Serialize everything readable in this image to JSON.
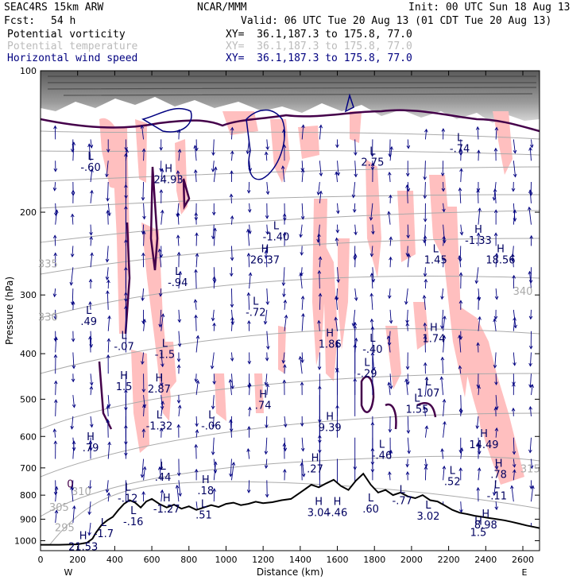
{
  "header": {
    "model": "SEAC4RS 15km ARW",
    "org": "NCAR/MMM",
    "init": "Init: 00 UTC Sun 18 Aug 13",
    "fcst_label": "Fcst:",
    "fcst_value": "54 h",
    "valid": "Valid: 06 UTC Tue 20 Aug 13 (01 CDT Tue 20 Aug 13)",
    "fields": [
      {
        "name": "Potential vorticity",
        "xy": "XY=  36.1,187.3 to 175.8, 77.0"
      },
      {
        "name": "Potential temperature",
        "xy": "XY=  36.1,187.3 to 175.8, 77.0"
      },
      {
        "name": "Horizontal wind speed",
        "xy": "XY=  36.1,187.3 to 175.8, 77.0"
      }
    ]
  },
  "colors": {
    "pv_contour": "#44004a",
    "theta_contour": "#aaaaaa",
    "wind_vector": "#000080",
    "wind_shade": "#ffbfbf",
    "terrain_line": "#000000",
    "strat_shade": "#6e6e6e"
  },
  "chart_data": {
    "type": "cross-section",
    "xlabel": "Distance (km)",
    "ylabel": "Pressure (hPa)",
    "x_ticks": [
      0,
      200,
      400,
      600,
      800,
      1000,
      1200,
      1400,
      1600,
      1800,
      2000,
      2200,
      2400,
      2600
    ],
    "y_ticks": [
      100,
      200,
      300,
      400,
      500,
      600,
      700,
      800,
      900,
      1000
    ],
    "xlim": [
      0,
      2690
    ],
    "ylim": [
      1050,
      100
    ],
    "y_scale": "log",
    "left_end_label": "W",
    "right_end_label": "E",
    "terrain": {
      "x": [
        0,
        100,
        200,
        250,
        280,
        300,
        330,
        360,
        390,
        420,
        450,
        480,
        510,
        540,
        570,
        600,
        640,
        680,
        720,
        760,
        800,
        840,
        880,
        920,
        960,
        1000,
        1040,
        1080,
        1120,
        1160,
        1200,
        1250,
        1300,
        1350,
        1400,
        1430,
        1460,
        1500,
        1540,
        1580,
        1620,
        1660,
        1700,
        1740,
        1780,
        1820,
        1860,
        1900,
        1940,
        1980,
        2020,
        2060,
        2100,
        2140,
        2180,
        2220,
        2260,
        2300,
        2340,
        2380,
        2420,
        2460,
        2500,
        2540,
        2580,
        2620,
        2660,
        2690
      ],
      "p": [
        1020,
        1020,
        1018,
        1010,
        990,
        960,
        925,
        905,
        890,
        860,
        835,
        820,
        830,
        850,
        825,
        815,
        835,
        850,
        838,
        855,
        845,
        860,
        850,
        840,
        848,
        835,
        830,
        840,
        835,
        826,
        832,
        828,
        820,
        815,
        790,
        775,
        760,
        770,
        755,
        742,
        765,
        780,
        745,
        720,
        760,
        790,
        780,
        800,
        790,
        805,
        812,
        800,
        820,
        825,
        842,
        860,
        872,
        878,
        885,
        890,
        895,
        900,
        905,
        912,
        920,
        928,
        935,
        940
      ]
    },
    "theta_contours": [
      {
        "value": 335,
        "label_x": 40,
        "label_p": 262
      },
      {
        "value": 330,
        "label_x": 40,
        "label_p": 340
      },
      {
        "value": 310,
        "label_x": 220,
        "label_p": 800
      },
      {
        "value": 305,
        "label_x": 100,
        "label_p": 865
      },
      {
        "value": 295,
        "label_x": 130,
        "label_p": 955
      },
      {
        "value": 315,
        "label_x": 2640,
        "label_p": 715
      },
      {
        "value": 340,
        "label_x": 2600,
        "label_p": 300
      }
    ],
    "pv_labels": [
      {
        "text": "0",
        "x": 160,
        "p": 770
      }
    ],
    "extrema": [
      {
        "kind": "L",
        "value": "-.60",
        "x": 270,
        "p": 162
      },
      {
        "kind": "H",
        "value": "24.93",
        "x": 690,
        "p": 172
      },
      {
        "kind": "L",
        "value": "-.94",
        "x": 740,
        "p": 285
      },
      {
        "kind": "L",
        "value": ".49",
        "x": 260,
        "p": 345
      },
      {
        "kind": "H",
        "value": "26.37",
        "x": 1210,
        "p": 255
      },
      {
        "kind": "L",
        "value": "-1.40",
        "x": 1270,
        "p": 228
      },
      {
        "kind": "L",
        "value": "-.72",
        "x": 1160,
        "p": 330
      },
      {
        "kind": "L",
        "value": "2.75",
        "x": 1790,
        "p": 158
      },
      {
        "kind": "L",
        "value": "-.74",
        "x": 2260,
        "p": 148
      },
      {
        "kind": "H",
        "value": "-1.33",
        "x": 2360,
        "p": 232
      },
      {
        "kind": "L",
        "value": "1.45",
        "x": 2130,
        "p": 255
      },
      {
        "kind": "H",
        "value": "18.56",
        "x": 2480,
        "p": 255
      },
      {
        "kind": "H",
        "value": "1.86",
        "x": 1560,
        "p": 385
      },
      {
        "kind": "L",
        "value": "-.40",
        "x": 1790,
        "p": 395
      },
      {
        "kind": "L",
        "value": "-.29",
        "x": 1760,
        "p": 445
      },
      {
        "kind": "H",
        "value": "1.74",
        "x": 2120,
        "p": 375
      },
      {
        "kind": "L",
        "value": "-.07",
        "x": 450,
        "p": 390
      },
      {
        "kind": "L",
        "value": "-1.5",
        "x": 670,
        "p": 405
      },
      {
        "kind": "H",
        "value": "2.87",
        "x": 640,
        "p": 480
      },
      {
        "kind": "H",
        "value": "1.5",
        "x": 450,
        "p": 475
      },
      {
        "kind": "H",
        "value": ".74",
        "x": 1200,
        "p": 520
      },
      {
        "kind": "L",
        "value": "1.07",
        "x": 2090,
        "p": 490
      },
      {
        "kind": "L",
        "value": "1.55",
        "x": 2030,
        "p": 530
      },
      {
        "kind": "L",
        "value": "-1.32",
        "x": 640,
        "p": 575
      },
      {
        "kind": "L",
        "value": "-.06",
        "x": 920,
        "p": 575
      },
      {
        "kind": "H",
        "value": "9.39",
        "x": 1560,
        "p": 580
      },
      {
        "kind": "H",
        "value": "14.49",
        "x": 2390,
        "p": 630
      },
      {
        "kind": "H",
        "value": ".79",
        "x": 270,
        "p": 640
      },
      {
        "kind": "L",
        "value": "-.46",
        "x": 1840,
        "p": 665
      },
      {
        "kind": "H",
        "value": ".27",
        "x": 1480,
        "p": 710
      },
      {
        "kind": "L",
        "value": ".44",
        "x": 660,
        "p": 740
      },
      {
        "kind": "H",
        "value": ".78",
        "x": 2470,
        "p": 730
      },
      {
        "kind": "L",
        "value": ".52",
        "x": 2220,
        "p": 755
      },
      {
        "kind": "L",
        "value": "-.11",
        "x": 2460,
        "p": 810
      },
      {
        "kind": "H",
        "value": ".18",
        "x": 890,
        "p": 790
      },
      {
        "kind": "L",
        "value": "-.12",
        "x": 470,
        "p": 820
      },
      {
        "kind": "L",
        "value": "-.77",
        "x": 1950,
        "p": 830
      },
      {
        "kind": "H",
        "value": "-1.27",
        "x": 680,
        "p": 865
      },
      {
        "kind": "H",
        "value": "3.04",
        "x": 1500,
        "p": 880
      },
      {
        "kind": "H",
        "value": "-.46",
        "x": 1600,
        "p": 880
      },
      {
        "kind": "L",
        "value": ".60",
        "x": 1780,
        "p": 865
      },
      {
        "kind": "L",
        "value": "3.02",
        "x": 2090,
        "p": 895
      },
      {
        "kind": "H",
        "value": "8.98",
        "x": 2400,
        "p": 935
      },
      {
        "kind": "L",
        "value": "-.16",
        "x": 500,
        "p": 920
      },
      {
        "kind": "L",
        "value": ".51",
        "x": 880,
        "p": 890
      },
      {
        "kind": "H",
        "value": "1.5",
        "x": 2360,
        "p": 970
      },
      {
        "kind": "L",
        "value": "-1.7",
        "x": 340,
        "p": 975
      },
      {
        "kind": "H",
        "value": "21.53",
        "x": 230,
        "p": 1040
      }
    ]
  }
}
